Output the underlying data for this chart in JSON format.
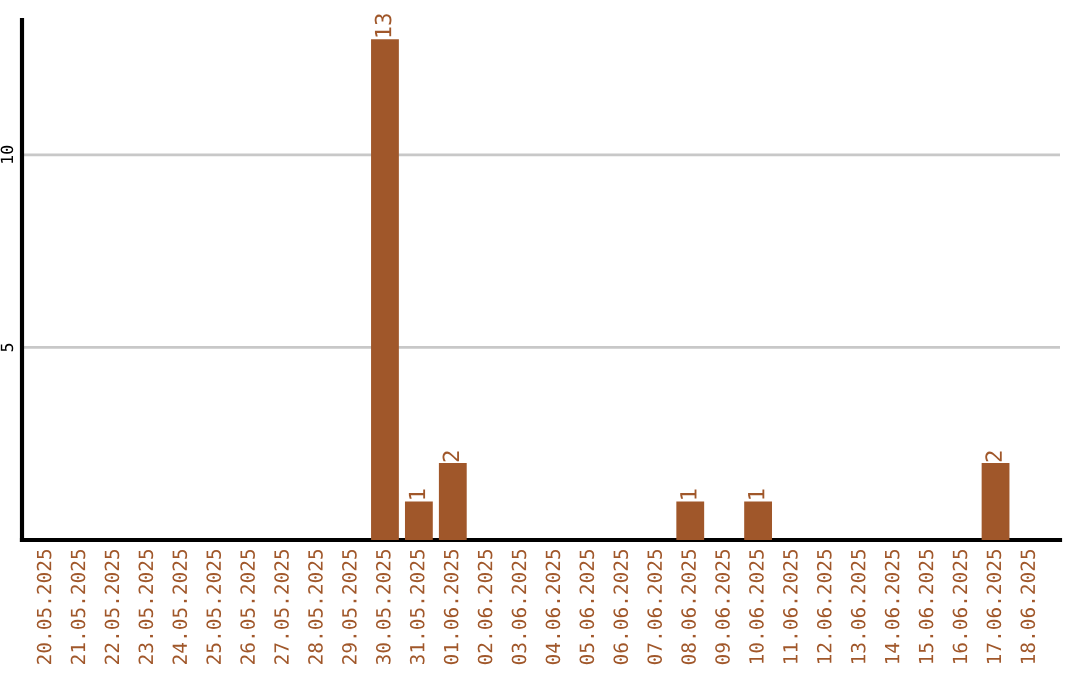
{
  "chart_data": {
    "type": "bar",
    "categories": [
      "20.05.2025",
      "21.05.2025",
      "22.05.2025",
      "23.05.2025",
      "24.05.2025",
      "25.05.2025",
      "26.05.2025",
      "27.05.2025",
      "28.05.2025",
      "29.05.2025",
      "30.05.2025",
      "31.05.2025",
      "01.06.2025",
      "02.06.2025",
      "03.06.2025",
      "04.06.2025",
      "05.06.2025",
      "06.06.2025",
      "07.06.2025",
      "08.06.2025",
      "09.06.2025",
      "10.06.2025",
      "11.06.2025",
      "12.06.2025",
      "13.06.2025",
      "14.06.2025",
      "15.06.2025",
      "16.06.2025",
      "17.06.2025",
      "18.06.2025"
    ],
    "values": [
      0,
      0,
      0,
      0,
      0,
      0,
      0,
      0,
      0,
      0,
      13,
      1,
      2,
      0,
      0,
      0,
      0,
      0,
      0,
      1,
      0,
      1,
      0,
      0,
      0,
      0,
      0,
      0,
      2,
      0
    ],
    "value_labels": [
      null,
      null,
      null,
      null,
      null,
      null,
      null,
      null,
      null,
      null,
      "13",
      "1",
      "2",
      null,
      null,
      null,
      null,
      null,
      null,
      "1",
      null,
      "1",
      null,
      null,
      null,
      null,
      null,
      null,
      "2",
      null
    ],
    "color": "#a0572a",
    "ylim": [
      0,
      13.5
    ],
    "yticks": [
      5,
      10
    ],
    "grid": "y"
  }
}
